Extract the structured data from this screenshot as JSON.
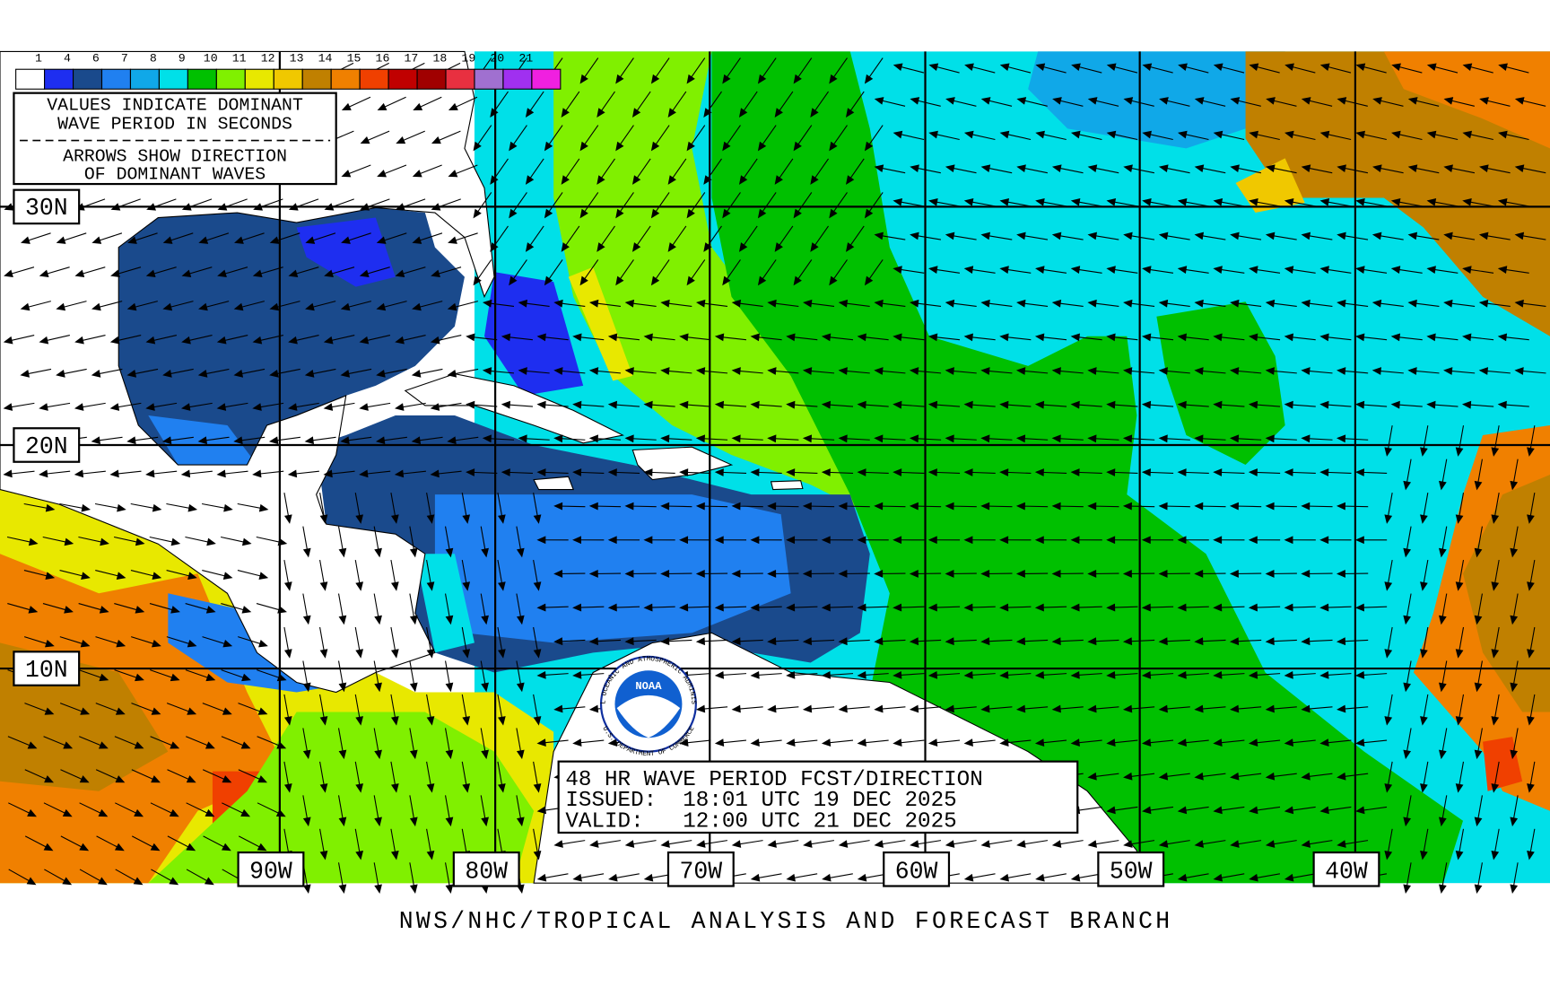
{
  "legend": {
    "labels": [
      "1",
      "4",
      "6",
      "7",
      "8",
      "9",
      "10",
      "11",
      "12",
      "13",
      "14",
      "15",
      "16",
      "17",
      "18",
      "19",
      "20",
      "21"
    ],
    "colors": [
      "#ffffff",
      "#1e2ef0",
      "#1a4a8c",
      "#2080f0",
      "#10a8e8",
      "#00e0e8",
      "#00c000",
      "#80f000",
      "#e8e800",
      "#f0c800",
      "#c08000",
      "#f08000",
      "#f04000",
      "#c00000",
      "#a00000",
      "#e83040",
      "#a070d0",
      "#a030f0",
      "#f020e0"
    ]
  },
  "notes": {
    "period": [
      "VALUES INDICATE DOMINANT",
      "WAVE PERIOD IN SECONDS"
    ],
    "direction": [
      "ARROWS SHOW DIRECTION",
      "OF DOMINANT WAVES"
    ]
  },
  "latitudes": [
    "30N",
    "20N",
    "10N"
  ],
  "longitudes": [
    "90W",
    "80W",
    "70W",
    "60W",
    "50W",
    "40W"
  ],
  "logo": {
    "name": "NOAA",
    "ring_top": "NATIONAL OCEANIC AND ATMOSPHERIC ADMINISTRATION",
    "ring_bottom": "U.S. DEPARTMENT OF COMMERCE"
  },
  "forecast": {
    "title": "48 HR WAVE PERIOD FCST/DIRECTION",
    "issued": "ISSUED:  18:01 UTC 19 DEC 2025",
    "valid": "VALID:   12:00 UTC 21 DEC 2025"
  },
  "credit": "NWS/NHC/TROPICAL ANALYSIS AND FORECAST BRANCH"
}
